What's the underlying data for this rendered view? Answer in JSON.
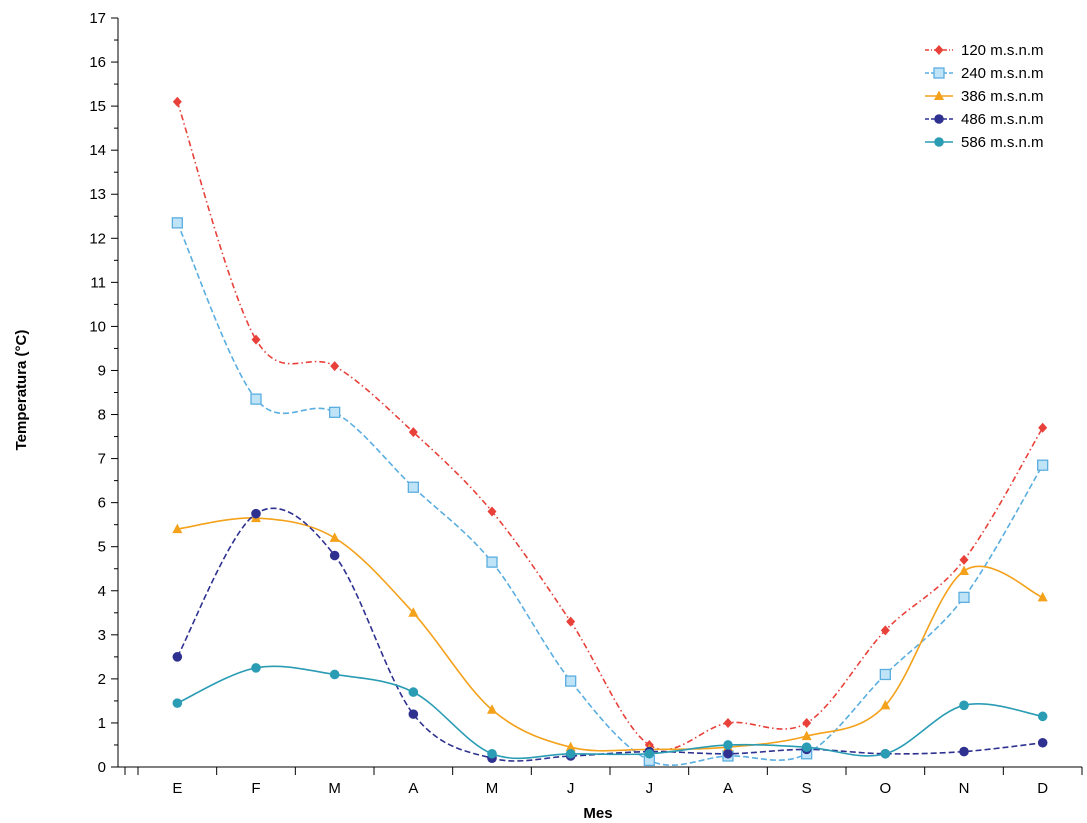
{
  "chart_data": {
    "type": "line",
    "xlabel": "Mes",
    "ylabel": "Temperatura (°C)",
    "categories": [
      "E",
      "F",
      "M",
      "A",
      "M",
      "J",
      "J",
      "A",
      "S",
      "O",
      "N",
      "D"
    ],
    "ylim": [
      0,
      17
    ],
    "yticks": [
      0,
      1,
      2,
      3,
      4,
      5,
      6,
      7,
      8,
      9,
      10,
      11,
      12,
      13,
      14,
      15,
      16,
      17
    ],
    "grid": false,
    "legend_position": "top-right",
    "series": [
      {
        "name": "120 m.s.n.m",
        "color": "#e8413a",
        "marker": "diamond",
        "line": "dash-dot",
        "values": [
          15.1,
          9.7,
          9.1,
          7.6,
          5.8,
          3.3,
          0.5,
          1.0,
          1.0,
          3.1,
          4.7,
          7.7
        ]
      },
      {
        "name": "240 m.s.n.m",
        "color": "#5aaee0",
        "marker": "square",
        "line": "dashed",
        "values": [
          12.35,
          8.35,
          8.05,
          6.35,
          4.65,
          1.95,
          0.15,
          0.25,
          0.3,
          2.1,
          3.85,
          6.85
        ]
      },
      {
        "name": "386 m.s.n.m",
        "color": "#f4a11b",
        "marker": "triangle",
        "line": "solid",
        "values": [
          5.4,
          5.65,
          5.2,
          3.5,
          1.3,
          0.45,
          0.4,
          0.45,
          0.7,
          1.4,
          4.45,
          3.85
        ]
      },
      {
        "name": "486 m.s.n.m",
        "color": "#2f3191",
        "marker": "circle",
        "line": "dashed",
        "values": [
          2.5,
          5.75,
          4.8,
          1.2,
          0.2,
          0.25,
          0.35,
          0.3,
          0.4,
          0.3,
          0.35,
          0.55
        ]
      },
      {
        "name": "586 m.s.n.m",
        "color": "#2a9cb4",
        "marker": "circle",
        "line": "solid",
        "values": [
          1.45,
          2.25,
          2.1,
          1.7,
          0.3,
          0.3,
          0.3,
          0.5,
          0.45,
          0.3,
          1.4,
          1.15
        ]
      }
    ]
  }
}
